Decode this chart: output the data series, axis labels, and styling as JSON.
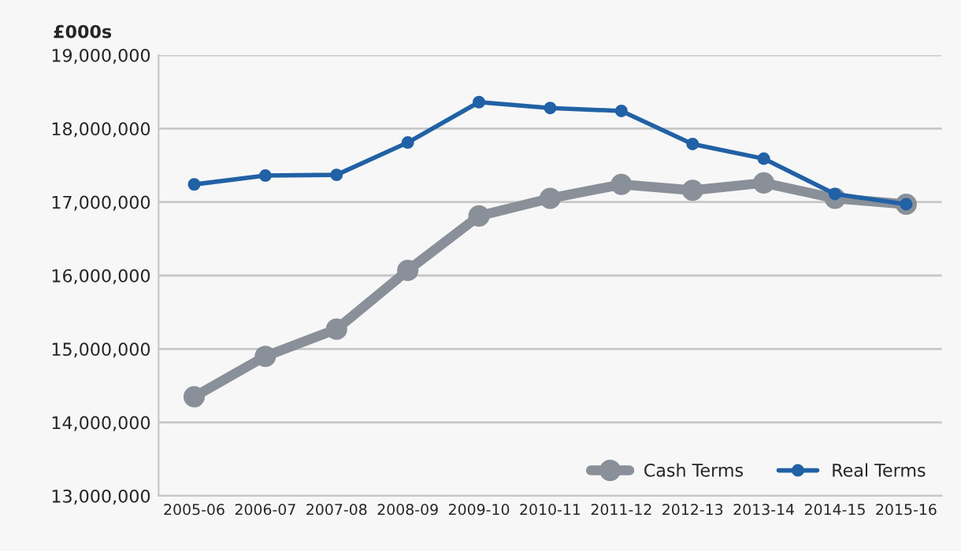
{
  "chart_data": {
    "type": "line",
    "ylabel": "£000s",
    "categories": [
      "2005-06",
      "2006-07",
      "2007-08",
      "2008-09",
      "2009-10",
      "2010-11",
      "2011-12",
      "2012-13",
      "2013-14",
      "2014-15",
      "2015-16"
    ],
    "series": [
      {
        "name": "Cash Terms",
        "color": "#8a9099",
        "values": [
          14350000,
          14900000,
          15270000,
          16070000,
          16810000,
          17050000,
          17240000,
          17160000,
          17260000,
          17050000,
          16970000
        ]
      },
      {
        "name": "Real Terms",
        "color": "#2161a5",
        "values": [
          17240000,
          17360000,
          17370000,
          17810000,
          18360000,
          18280000,
          18240000,
          17790000,
          17590000,
          17110000,
          16970000
        ]
      }
    ],
    "ylim": [
      13000000,
      19000000
    ],
    "yticks": [
      {
        "value": 13000000,
        "label": "13,000,000"
      },
      {
        "value": 14000000,
        "label": "14,000,000"
      },
      {
        "value": 15000000,
        "label": "15,000,000"
      },
      {
        "value": 16000000,
        "label": "16,000,000"
      },
      {
        "value": 17000000,
        "label": "17,000,000"
      },
      {
        "value": 18000000,
        "label": "18,000,000"
      },
      {
        "value": 19000000,
        "label": "19,000,000"
      }
    ],
    "grid": "y",
    "legend": "bottom right",
    "marker": "circle",
    "line_style": "solid"
  }
}
